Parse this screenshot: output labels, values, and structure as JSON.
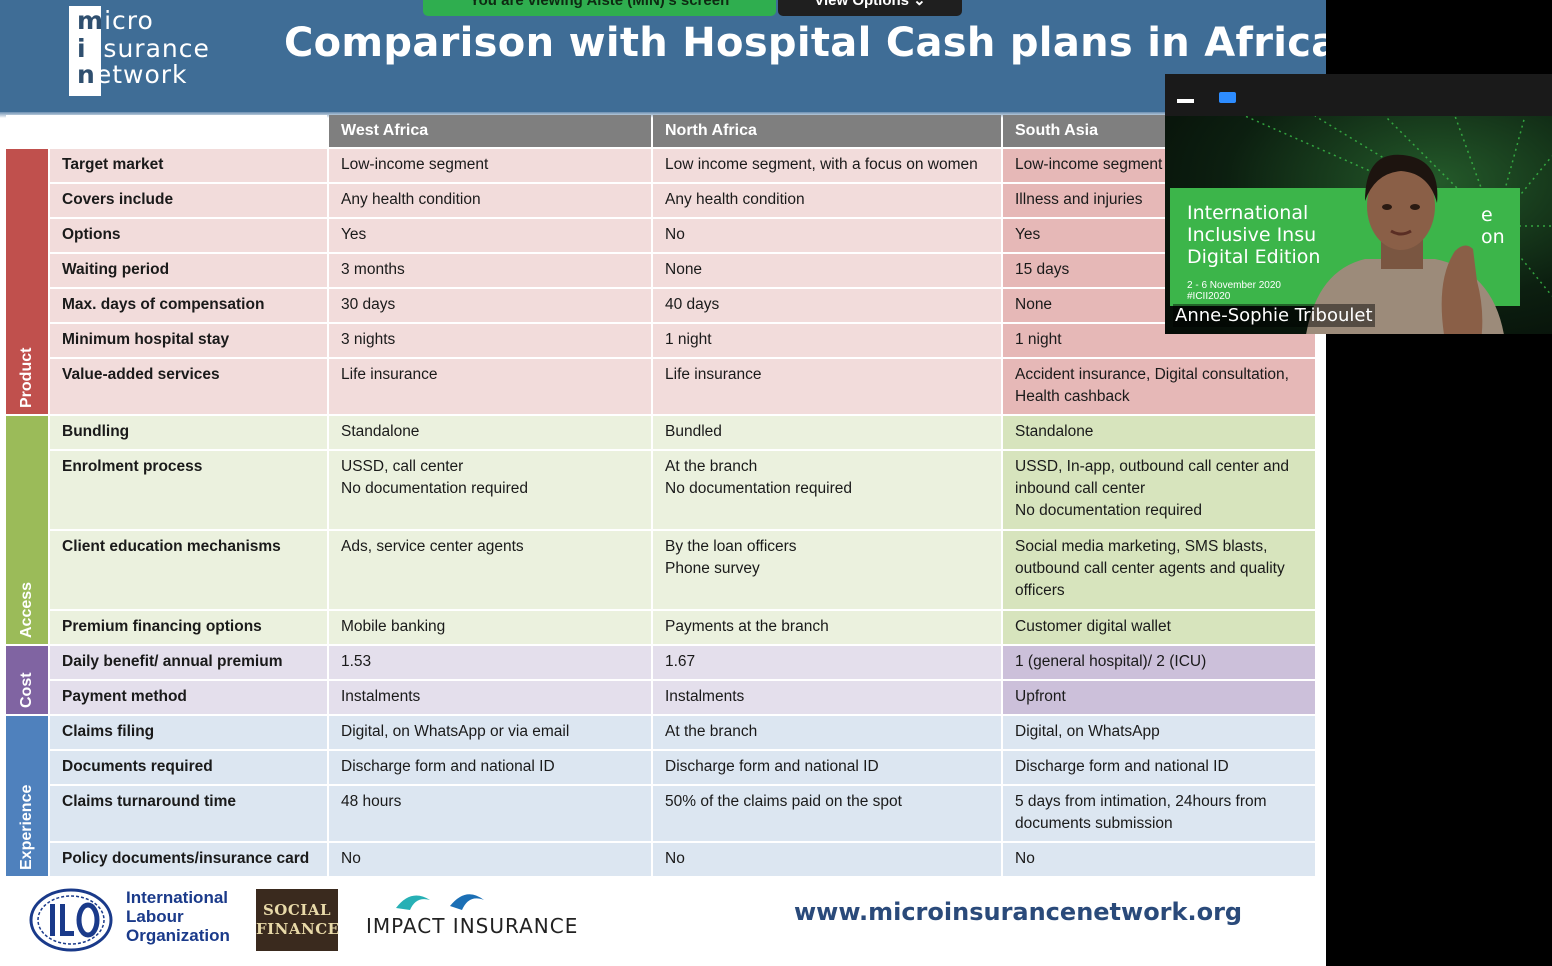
{
  "screen_share": {
    "banner": "You are viewing Aiste (MiN)'s screen",
    "view_options": "View Options ⌄"
  },
  "slide": {
    "logo_lines": [
      {
        "first": "m",
        "rest": "icro"
      },
      {
        "first": "i",
        "rest": "nsurance"
      },
      {
        "first": "n",
        "rest": "etwork"
      }
    ],
    "title": "Comparison with Hospital Cash plans in Africa",
    "columns": [
      "West Africa",
      "North Africa",
      "South Asia"
    ],
    "categories": {
      "product": "Product",
      "access": "Access",
      "cost": "Cost",
      "experience": "Experience"
    },
    "rows": [
      {
        "label": "Target market",
        "west": "Low-income segment",
        "north": "Low income segment, with a focus on women",
        "south": "Low-income segment"
      },
      {
        "label": "Covers include",
        "west": "Any health condition",
        "north": "Any health condition",
        "south": "Illness and injuries"
      },
      {
        "label": "Options",
        "west": "Yes",
        "north": "No",
        "south": "Yes"
      },
      {
        "label": "Waiting period",
        "west": "3 months",
        "north": "None",
        "south": "15 days"
      },
      {
        "label": "Max. days of compensation",
        "west": "30 days",
        "north": "40 days",
        "south": "None"
      },
      {
        "label": "Minimum hospital stay",
        "west": "3 nights",
        "north": "1 night",
        "south": "1 night"
      },
      {
        "label": "Value-added services",
        "west": "Life insurance",
        "north": "Life insurance",
        "south": "Accident insurance, Digital consultation, Health cashback"
      },
      {
        "label": "Bundling",
        "west": "Standalone",
        "north": "Bundled",
        "south": "Standalone"
      },
      {
        "label": "Enrolment process",
        "west": "USSD, call center\nNo documentation required",
        "north": "At the branch\nNo documentation required",
        "south": "USSD, In-app, outbound call center and inbound call center\nNo documentation required"
      },
      {
        "label": "Client education mechanisms",
        "west": "Ads, service center agents",
        "north": "By the loan officers\nPhone survey",
        "south": "Social media marketing, SMS blasts, outbound call center agents and quality officers"
      },
      {
        "label": "Premium financing options",
        "west": "Mobile banking",
        "north": "Payments at the branch",
        "south": "Customer digital wallet"
      },
      {
        "label": "Daily benefit/ annual premium",
        "west": "1.53",
        "north": "1.67",
        "south": "1 (general hospital)/ 2 (ICU)"
      },
      {
        "label": "Payment method",
        "west": "Instalments",
        "north": "Instalments",
        "south": "Upfront"
      },
      {
        "label": "Claims filing",
        "west": "Digital, on WhatsApp or via email",
        "north": "At the branch",
        "south": "Digital, on WhatsApp"
      },
      {
        "label": "Documents required",
        "west": "Discharge form and national ID",
        "north": "Discharge form and national ID",
        "south": "Discharge form and national ID"
      },
      {
        "label": "Claims turnaround time",
        "west": "48 hours",
        "north": "50% of the claims paid on the spot",
        "south": "5 days from intimation, 24hours from documents submission"
      },
      {
        "label": "Policy documents/insurance card",
        "west": "No",
        "north": "No",
        "south": "No"
      }
    ],
    "footer": {
      "ilo_lines": [
        "International",
        "Labour",
        "Organization"
      ],
      "social_finance_lines": [
        "SOCIAL",
        "FINANCE"
      ],
      "impact_insurance": "IMPACT INSURANCE",
      "website": "www.microinsurancenetwork.org"
    }
  },
  "video": {
    "event_title_lines": [
      "International",
      "Inclusive Insu",
      "Digital Edition"
    ],
    "event_title_tail": "e on",
    "event_date_lines": [
      "2 - 6 November 2020",
      "#ICII2020"
    ],
    "participant_name": "Anne-Sophie Triboulet"
  }
}
